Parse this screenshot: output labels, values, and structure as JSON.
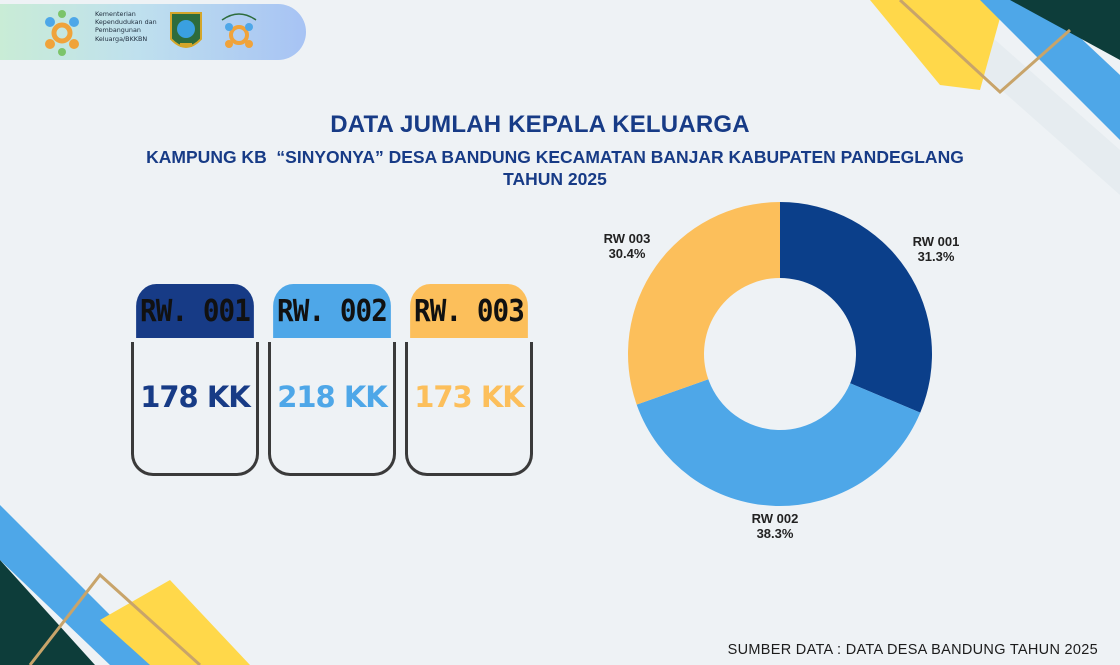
{
  "header": {
    "ministry_text": "Kementerian Kependudukan dan Pembangunan Keluarga/BKKBN"
  },
  "title": "DATA JUMLAH KEPALA KELUARGA",
  "subtitle_line1": "KAMPUNG KB  “SINYONYA” DESA BANDUNG KECAMATAN BANJAR KABUPATEN PANDEGLANG",
  "subtitle_line2": "TAHUN 2025",
  "cards": [
    {
      "label": "RW. 001",
      "value": "178 KK",
      "color": "#173b86"
    },
    {
      "label": "RW. 002",
      "value": "218 KK",
      "color": "#4ea7e8"
    },
    {
      "label": "RW. 003",
      "value": "173 KK",
      "color": "#fcbf5b"
    }
  ],
  "chart_data": {
    "type": "pie",
    "donut": true,
    "categories": [
      "RW 001",
      "RW 002",
      "RW 003"
    ],
    "values": [
      31.3,
      38.3,
      30.4
    ],
    "percent_labels": [
      "31.3%",
      "38.3%",
      "30.4%"
    ],
    "colors": [
      "#0b3f8a",
      "#4ea7e8",
      "#fcbf5b"
    ]
  },
  "source": "SUMBER DATA : DATA DESA BANDUNG TAHUN 2025"
}
